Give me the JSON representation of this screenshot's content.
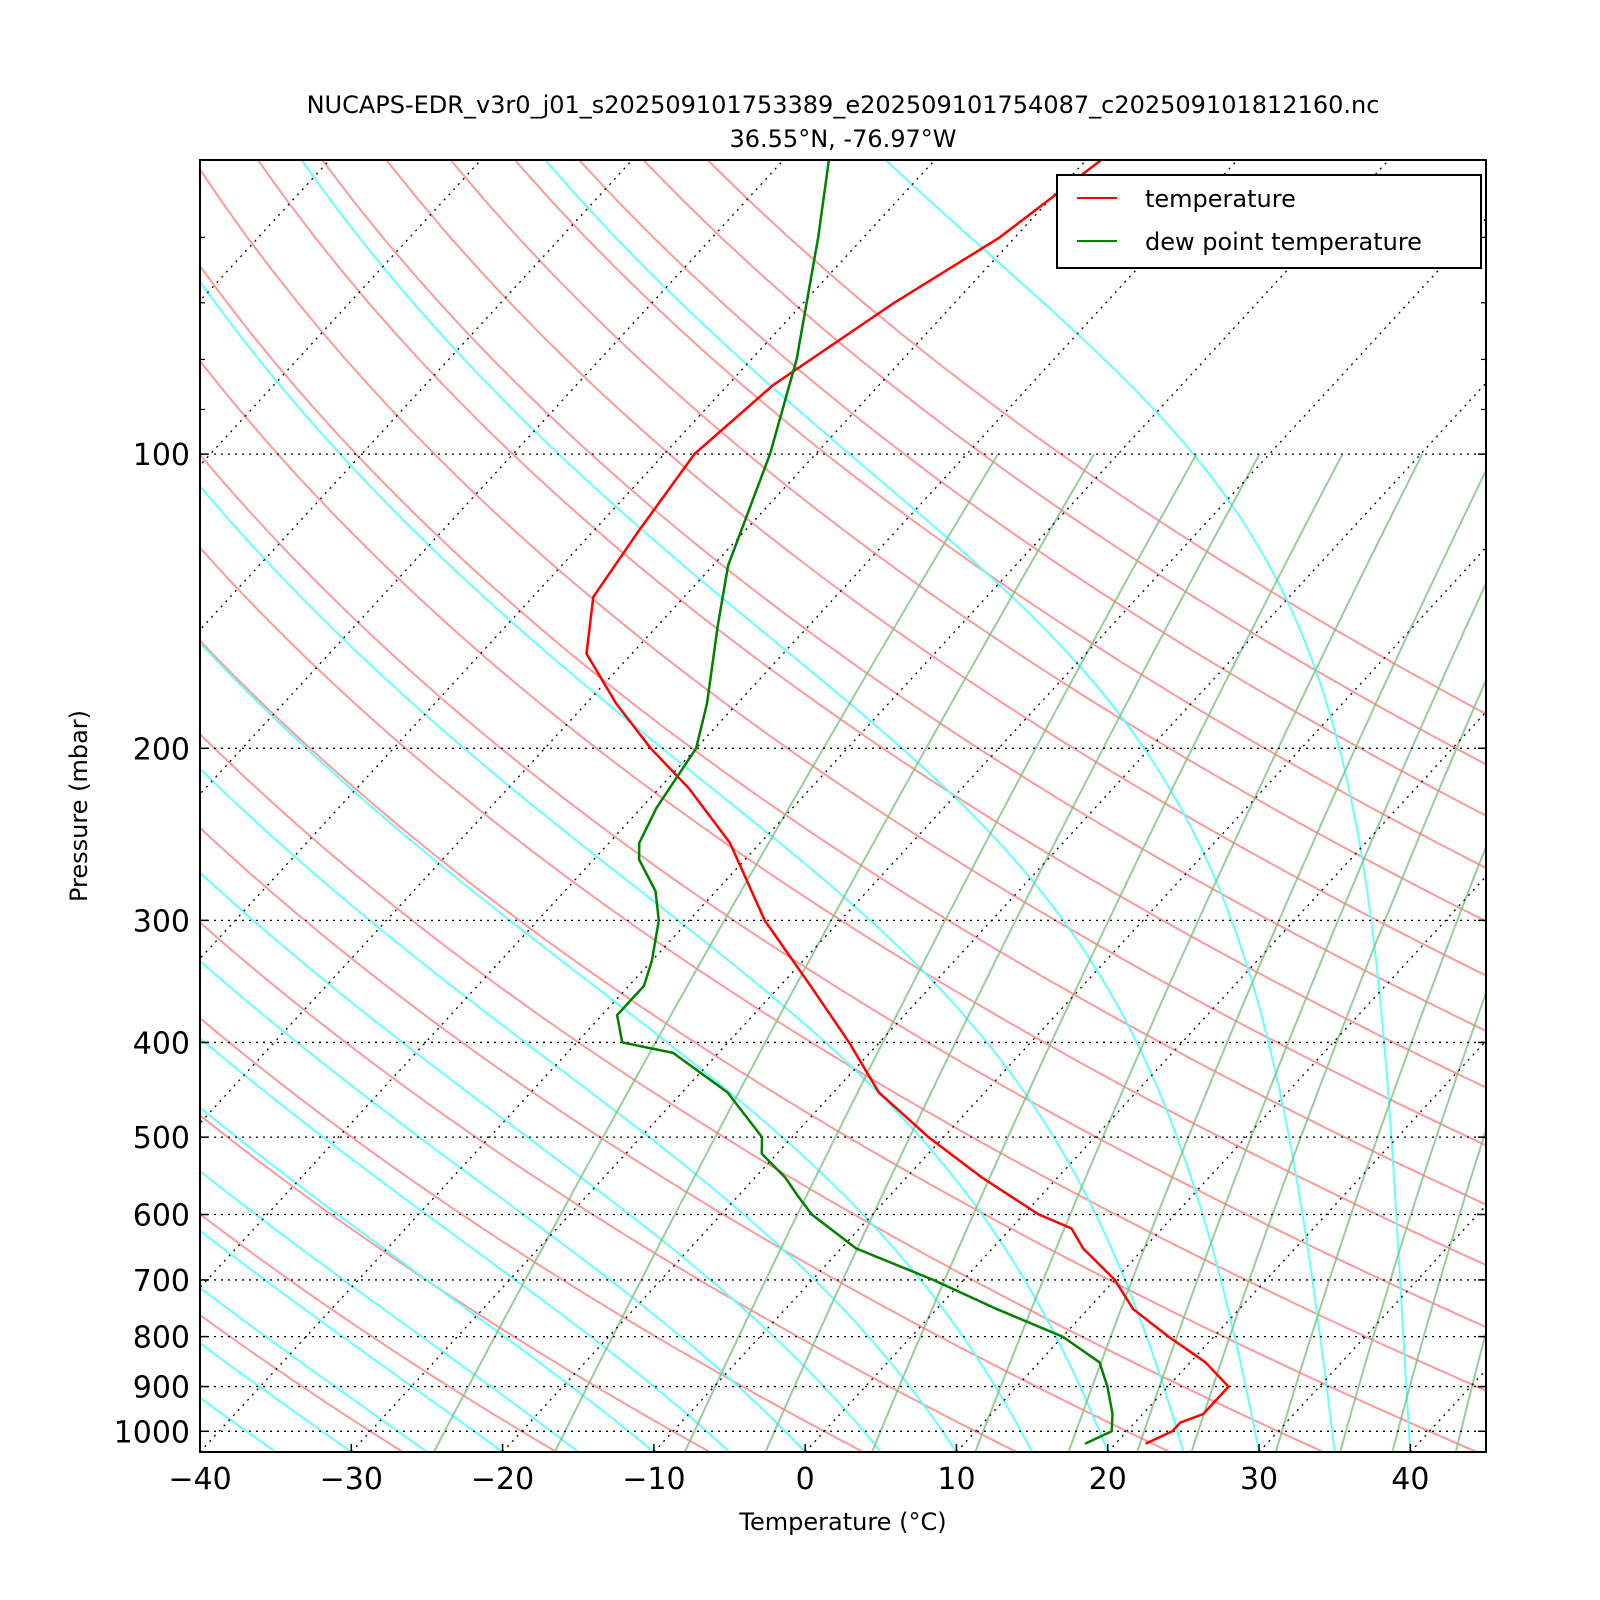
{
  "chart_data": {
    "type": "line",
    "title": "NUCAPS-EDR_v3r0_j01_s202509101753389_e202509101754087_c202509101812160.nc",
    "subtitle": "36.55°N, -76.97°W",
    "xlabel": "Temperature (°C)",
    "ylabel": "Pressure (mbar)",
    "xlim": [
      -40,
      45
    ],
    "ylim": [
      1050,
      50
    ],
    "y_scale": "log",
    "skew": true,
    "x_ticks": [
      "−40",
      "−30",
      "−20",
      "−10",
      "0",
      "10",
      "20",
      "30",
      "40"
    ],
    "y_ticks": [
      "100",
      "200",
      "300",
      "400",
      "500",
      "600",
      "700",
      "800",
      "900",
      "1000"
    ],
    "legend_position": "top-right",
    "colors": {
      "temperature": "#ff0000",
      "dewpoint": "#007f00",
      "dry_adiabat": "#ff9999",
      "moist_adiabat": "#66ffff",
      "mixing_ratio": "#7fbf7f",
      "isotherm_grid": "#000000"
    },
    "series": [
      {
        "name": "temperature",
        "pressure": [
          1030,
          1000,
          980,
          960,
          900,
          850,
          800,
          750,
          700,
          650,
          620,
          600,
          550,
          500,
          450,
          400,
          350,
          300,
          250,
          220,
          200,
          180,
          160,
          140,
          120,
          100,
          85,
          70,
          60,
          50
        ],
        "values": [
          22,
          23,
          23,
          24,
          24,
          21,
          17,
          13,
          10,
          6,
          4,
          1,
          -5,
          -11,
          -17,
          -22,
          -28,
          -35,
          -42,
          -48,
          -53,
          -58,
          -63,
          -66,
          -67,
          -68,
          -67,
          -64,
          -61,
          -59
        ]
      },
      {
        "name": "dew point temperature",
        "pressure": [
          1030,
          1000,
          960,
          900,
          850,
          800,
          750,
          700,
          650,
          600,
          575,
          550,
          520,
          500,
          450,
          410,
          400,
          375,
          350,
          330,
          300,
          280,
          260,
          250,
          230,
          200,
          180,
          150,
          130,
          100,
          80,
          60,
          50
        ],
        "values": [
          18,
          19,
          18,
          16,
          14,
          10,
          4,
          -2,
          -9,
          -14,
          -16,
          -18,
          -21,
          -22,
          -27,
          -33,
          -37,
          -39,
          -39,
          -40,
          -42,
          -44,
          -47,
          -48,
          -49,
          -50,
          -52,
          -56,
          -59,
          -63,
          -67,
          -73,
          -77
        ]
      }
    ],
    "legend": [
      "temperature",
      "dew point temperature"
    ]
  }
}
